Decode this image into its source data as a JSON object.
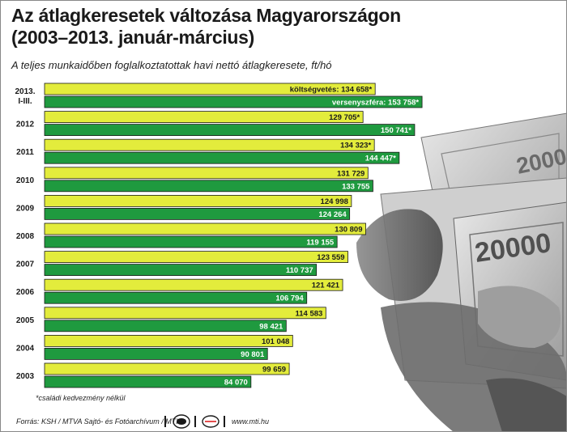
{
  "title_line1": "Az átlagkeresetek változása Magyarországon",
  "title_line2": "(2003–2013. január-március)",
  "subtitle": "A teljes munkaidőben foglalkoztatottak havi nettó átlagkeresete, ft/hó",
  "footnote": "*családi kedvezmény nélkül",
  "footer": {
    "source": "Forrás: KSH / MTVA Sajtó- és Fotóarchívum / MTI",
    "site": "www.mti.hu",
    "logo1_icon": "mtva-logo-icon",
    "logo2_icon": "mti-logo-icon"
  },
  "banknote_text": "20000",
  "colors": {
    "public": "#e3ec3c",
    "private": "#1f9a3f",
    "text": "#1a1a1a"
  },
  "chart_data": {
    "type": "bar",
    "orientation": "horizontal",
    "categories": [
      [
        "2013.",
        "I-III."
      ],
      [
        "2012"
      ],
      [
        "2011"
      ],
      [
        "2010"
      ],
      [
        "2009"
      ],
      [
        "2008"
      ],
      [
        "2007"
      ],
      [
        "2006"
      ],
      [
        "2005"
      ],
      [
        "2004"
      ],
      [
        "2003"
      ]
    ],
    "series": [
      {
        "key": "public",
        "values": [
          134658,
          129705,
          134323,
          131729,
          124998,
          130809,
          123559,
          121421,
          114583,
          101048,
          99659
        ],
        "labels": [
          "költségvetés: 134 658*",
          "129 705*",
          "134 323*",
          "131 729",
          "124 998",
          "130 809",
          "123 559",
          "121 421",
          "114 583",
          "101 048",
          "99 659"
        ]
      },
      {
        "key": "private",
        "values": [
          153758,
          150741,
          144447,
          133755,
          124264,
          119155,
          110737,
          106794,
          98421,
          90801,
          84070
        ],
        "labels": [
          "versenyszféra: 153 758*",
          "150 741*",
          "144 447*",
          "133 755",
          "124 264",
          "119 155",
          "110 737",
          "106 794",
          "98 421",
          "90 801",
          "84 070"
        ]
      }
    ],
    "xlim": [
      0,
      160000
    ]
  }
}
